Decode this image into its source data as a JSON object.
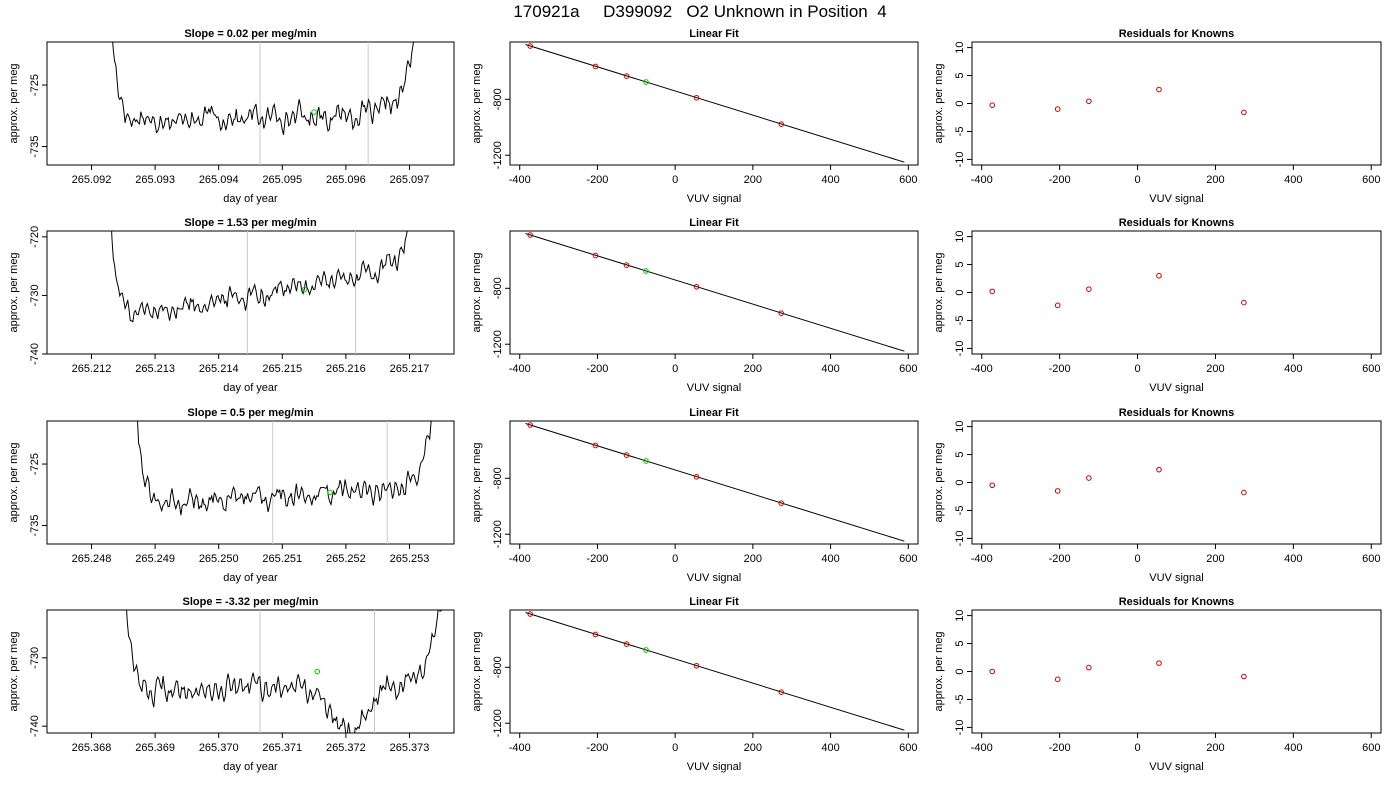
{
  "main_title": "170921a     D399092   O2 Unknown in Position  4",
  "colors": {
    "data_line": "#000000",
    "known_points": "#cc0000",
    "unknown_point": "#00cc00",
    "marker_lines": "#c8c8c8"
  },
  "chart_data": [
    {
      "type": "line",
      "row": 1,
      "col": 1,
      "title": "Slope =  0.02  per meg/min",
      "xlabel": "day of year",
      "ylabel": "approx. per meg",
      "xlim": [
        265.0913,
        265.0977
      ],
      "ylim": [
        -738.0,
        -718.0
      ],
      "xticks": [
        265.092,
        265.093,
        265.094,
        265.095,
        265.096,
        265.097
      ],
      "xtick_labels": [
        "265.092",
        "265.093",
        "265.094",
        "265.095",
        "265.096",
        "265.097"
      ],
      "yticks": [
        -735,
        -725
      ],
      "ytick_labels": [
        "-735",
        "-725"
      ],
      "start_x": 265.09226,
      "end_x": 265.0972,
      "start_level": -700,
      "end_level": -705,
      "trend": [
        -730.8,
        -729.6
      ],
      "vlines": [
        265.09465,
        265.09635
      ],
      "unknown_point": {
        "x": 265.0955,
        "y": -729.4
      }
    },
    {
      "type": "line",
      "row": 2,
      "col": 1,
      "title": "Slope =  1.53  per meg/min",
      "xlabel": "day of year",
      "ylabel": "approx. per meg",
      "xlim": [
        265.2113,
        265.2177
      ],
      "ylim": [
        -740.0,
        -719.0
      ],
      "xticks": [
        265.212,
        265.213,
        265.214,
        265.215,
        265.216,
        265.217
      ],
      "xtick_labels": [
        "265.212",
        "265.213",
        "265.214",
        "265.215",
        "265.216",
        "265.217"
      ],
      "yticks": [
        -740,
        -730,
        -720
      ],
      "ytick_labels": [
        "-740",
        "-730",
        "-720"
      ],
      "start_x": 265.21226,
      "end_x": 265.2172,
      "start_level": -705,
      "end_level": -706,
      "trend": [
        -734.0,
        -724.8
      ],
      "vlines": [
        265.21445,
        265.21615
      ],
      "unknown_point": {
        "x": 265.21535,
        "y": -729.0
      }
    },
    {
      "type": "line",
      "row": 3,
      "col": 1,
      "title": "Slope =  0.5  per meg/min",
      "xlabel": "day of year",
      "ylabel": "approx. per meg",
      "xlim": [
        265.2473,
        265.2537
      ],
      "ylim": [
        -738.0,
        -718.0
      ],
      "xticks": [
        265.248,
        265.249,
        265.25,
        265.251,
        265.252,
        265.253
      ],
      "xtick_labels": [
        "265.248",
        "265.249",
        "265.250",
        "265.251",
        "265.252",
        "265.253"
      ],
      "yticks": [
        -735,
        -725
      ],
      "ytick_labels": [
        "-735",
        "-725"
      ],
      "start_x": 265.24866,
      "end_x": 265.2535,
      "start_level": -702,
      "end_level": -705,
      "trend": [
        -731.4,
        -728.6
      ],
      "vlines": [
        265.25085,
        265.25265
      ],
      "unknown_point": {
        "x": 265.25175,
        "y": -729.6
      }
    },
    {
      "type": "line",
      "row": 4,
      "col": 1,
      "title": "Slope =  -3.32  per meg/min",
      "xlabel": "day of year",
      "ylabel": "approx. per meg",
      "xlim": [
        265.3673,
        265.3737
      ],
      "ylim": [
        -741.0,
        -723.0
      ],
      "xticks": [
        265.368,
        265.369,
        265.37,
        265.371,
        265.372,
        265.373
      ],
      "xtick_labels": [
        "265.368",
        "265.369",
        "265.370",
        "265.371",
        "265.372",
        "265.373"
      ],
      "yticks": [
        -740,
        -730
      ],
      "ytick_labels": [
        "-740",
        "-730"
      ],
      "start_x": 265.3685,
      "end_x": 265.3735,
      "start_level": -712,
      "end_level": -722,
      "trend": [
        -735.0,
        -733.5
      ],
      "vlines": [
        265.37065,
        265.37245
      ],
      "dip": {
        "center": 265.37205,
        "depth": 6.5,
        "width": 0.0004
      },
      "unknown_point": {
        "x": 265.37155,
        "y": -732.0
      }
    },
    {
      "type": "scatter",
      "row": 1,
      "col": 2,
      "title": "Linear Fit",
      "xlabel": "VUV signal",
      "ylabel": "approx. per meg",
      "xlim": [
        -425,
        625
      ],
      "ylim": [
        -1270,
        -390
      ],
      "xticks": [
        -400,
        -200,
        0,
        200,
        400,
        600
      ],
      "xtick_labels": [
        "-400",
        "-200",
        "0",
        "200",
        "400",
        "600"
      ],
      "yticks": [
        -1200,
        -800
      ],
      "ytick_labels": [
        "-1200",
        "-800"
      ],
      "fit_line": {
        "x": [
          -385,
          590
        ],
        "y": [
          -408,
          -1250
        ]
      },
      "known_points": [
        {
          "x": -373,
          "y": -419
        },
        {
          "x": -205,
          "y": -565
        },
        {
          "x": -125,
          "y": -634
        },
        {
          "x": 55,
          "y": -789
        },
        {
          "x": 273,
          "y": -978
        }
      ],
      "unknown_point": {
        "x": -75,
        "y": -676
      }
    },
    {
      "type": "scatter",
      "row": 2,
      "col": 2,
      "title": "Linear Fit",
      "xlabel": "VUV signal",
      "ylabel": "approx. per meg",
      "xlim": [
        -425,
        625
      ],
      "ylim": [
        -1270,
        -390
      ],
      "xticks": [
        -400,
        -200,
        0,
        200,
        400,
        600
      ],
      "xtick_labels": [
        "-400",
        "-200",
        "0",
        "200",
        "400",
        "600"
      ],
      "yticks": [
        -1200,
        -800
      ],
      "ytick_labels": [
        "-1200",
        "-800"
      ],
      "fit_line": {
        "x": [
          -385,
          590
        ],
        "y": [
          -408,
          -1250
        ]
      },
      "known_points": [
        {
          "x": -373,
          "y": -419
        },
        {
          "x": -205,
          "y": -565
        },
        {
          "x": -125,
          "y": -634
        },
        {
          "x": 55,
          "y": -789
        },
        {
          "x": 273,
          "y": -978
        }
      ],
      "unknown_point": {
        "x": -75,
        "y": -676
      }
    },
    {
      "type": "scatter",
      "row": 3,
      "col": 2,
      "title": "Linear Fit",
      "xlabel": "VUV signal",
      "ylabel": "approx. per meg",
      "xlim": [
        -425,
        625
      ],
      "ylim": [
        -1270,
        -390
      ],
      "xticks": [
        -400,
        -200,
        0,
        200,
        400,
        600
      ],
      "xtick_labels": [
        "-400",
        "-200",
        "0",
        "200",
        "400",
        "600"
      ],
      "yticks": [
        -1200,
        -800
      ],
      "ytick_labels": [
        "-1200",
        "-800"
      ],
      "fit_line": {
        "x": [
          -385,
          590
        ],
        "y": [
          -408,
          -1250
        ]
      },
      "known_points": [
        {
          "x": -373,
          "y": -419
        },
        {
          "x": -205,
          "y": -565
        },
        {
          "x": -125,
          "y": -634
        },
        {
          "x": 55,
          "y": -789
        },
        {
          "x": 273,
          "y": -978
        }
      ],
      "unknown_point": {
        "x": -75,
        "y": -676
      }
    },
    {
      "type": "scatter",
      "row": 4,
      "col": 2,
      "title": "Linear Fit",
      "xlabel": "VUV signal",
      "ylabel": "approx. per meg",
      "xlim": [
        -425,
        625
      ],
      "ylim": [
        -1270,
        -390
      ],
      "xticks": [
        -400,
        -200,
        0,
        200,
        400,
        600
      ],
      "xtick_labels": [
        "-400",
        "-200",
        "0",
        "200",
        "400",
        "600"
      ],
      "yticks": [
        -1200,
        -800
      ],
      "ytick_labels": [
        "-1200",
        "-800"
      ],
      "fit_line": {
        "x": [
          -385,
          590
        ],
        "y": [
          -408,
          -1250
        ]
      },
      "known_points": [
        {
          "x": -373,
          "y": -419
        },
        {
          "x": -205,
          "y": -565
        },
        {
          "x": -125,
          "y": -634
        },
        {
          "x": 55,
          "y": -789
        },
        {
          "x": 273,
          "y": -978
        }
      ],
      "unknown_point": {
        "x": -75,
        "y": -676
      }
    },
    {
      "type": "scatter",
      "row": 1,
      "col": 3,
      "title": "Residuals for Knowns",
      "xlabel": "VUV signal",
      "ylabel": "approx. per meg",
      "xlim": [
        -425,
        625
      ],
      "ylim": [
        -11,
        11
      ],
      "xticks": [
        -400,
        -200,
        0,
        200,
        400,
        600
      ],
      "xtick_labels": [
        "-400",
        "-200",
        "0",
        "200",
        "400",
        "600"
      ],
      "yticks": [
        -10,
        -5,
        0,
        5,
        10
      ],
      "ytick_labels": [
        "-10",
        "-5",
        "0",
        "5",
        "10"
      ],
      "known_points": [
        {
          "x": -373,
          "y": -0.3
        },
        {
          "x": -205,
          "y": -1.0
        },
        {
          "x": -125,
          "y": 0.4
        },
        {
          "x": 55,
          "y": 2.5
        },
        {
          "x": 273,
          "y": -1.6
        }
      ]
    },
    {
      "type": "scatter",
      "row": 2,
      "col": 3,
      "title": "Residuals for Knowns",
      "xlabel": "VUV signal",
      "ylabel": "approx. per meg",
      "xlim": [
        -425,
        625
      ],
      "ylim": [
        -11,
        11
      ],
      "xticks": [
        -400,
        -200,
        0,
        200,
        400,
        600
      ],
      "xtick_labels": [
        "-400",
        "-200",
        "0",
        "200",
        "400",
        "600"
      ],
      "yticks": [
        -10,
        -5,
        0,
        5,
        10
      ],
      "ytick_labels": [
        "-10",
        "-5",
        "0",
        "5",
        "10"
      ],
      "known_points": [
        {
          "x": -373,
          "y": 0.2
        },
        {
          "x": -205,
          "y": -2.3
        },
        {
          "x": -125,
          "y": 0.6
        },
        {
          "x": 55,
          "y": 3.0
        },
        {
          "x": 273,
          "y": -1.8
        }
      ]
    },
    {
      "type": "scatter",
      "row": 3,
      "col": 3,
      "title": "Residuals for Knowns",
      "xlabel": "VUV signal",
      "ylabel": "approx. per meg",
      "xlim": [
        -425,
        625
      ],
      "ylim": [
        -11,
        11
      ],
      "xticks": [
        -400,
        -200,
        0,
        200,
        400,
        600
      ],
      "xtick_labels": [
        "-400",
        "-200",
        "0",
        "200",
        "400",
        "600"
      ],
      "yticks": [
        -10,
        -5,
        0,
        5,
        10
      ],
      "ytick_labels": [
        "-10",
        "-5",
        "0",
        "5",
        "10"
      ],
      "known_points": [
        {
          "x": -373,
          "y": -0.5
        },
        {
          "x": -205,
          "y": -1.5
        },
        {
          "x": -125,
          "y": 0.8
        },
        {
          "x": 55,
          "y": 2.3
        },
        {
          "x": 273,
          "y": -1.8
        }
      ]
    },
    {
      "type": "scatter",
      "row": 4,
      "col": 3,
      "title": "Residuals for Knowns",
      "xlabel": "VUV signal",
      "ylabel": "approx. per meg",
      "xlim": [
        -425,
        625
      ],
      "ylim": [
        -11,
        11
      ],
      "xticks": [
        -400,
        -200,
        0,
        200,
        400,
        600
      ],
      "xtick_labels": [
        "-400",
        "-200",
        "0",
        "200",
        "400",
        "600"
      ],
      "yticks": [
        -10,
        -5,
        0,
        5,
        10
      ],
      "ytick_labels": [
        "-10",
        "-5",
        "0",
        "5",
        "10"
      ],
      "known_points": [
        {
          "x": -373,
          "y": 0.0
        },
        {
          "x": -205,
          "y": -1.4
        },
        {
          "x": -125,
          "y": 0.7
        },
        {
          "x": 55,
          "y": 1.5
        },
        {
          "x": 273,
          "y": -0.9
        }
      ]
    }
  ]
}
